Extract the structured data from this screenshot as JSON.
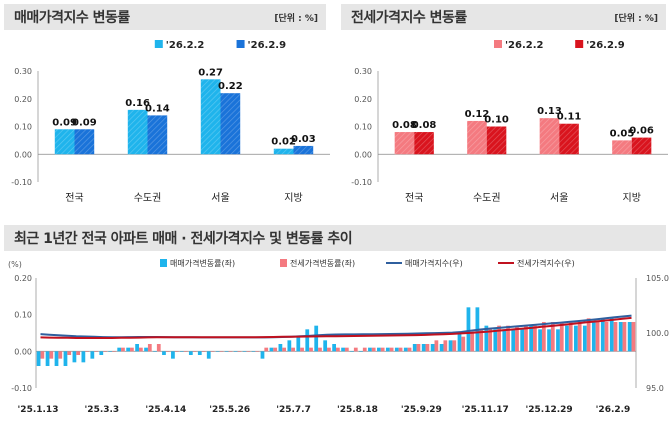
{
  "charts": [
    {
      "title": "매매가격지수 변동률",
      "unit": "[단위 : %]",
      "legend": [
        "'26.2.2",
        "'26.2.9"
      ],
      "colors": [
        "#1fb4ec",
        "#1a73d9"
      ],
      "categories": [
        "전국",
        "수도권",
        "서울",
        "지방"
      ],
      "series": [
        [
          0.09,
          0.16,
          0.27,
          0.02
        ],
        [
          0.09,
          0.14,
          0.22,
          0.03
        ]
      ],
      "labels": [
        [
          "0.09",
          "0.16",
          "0.27",
          "0.02"
        ],
        [
          "0.09",
          "0.14",
          "0.22",
          "0.03"
        ]
      ],
      "yticks": [
        "0.30",
        "0.20",
        "0.10",
        "0.00",
        "-0.10"
      ]
    },
    {
      "title": "전세가격지수 변동률",
      "unit": "[단위 : %]",
      "legend": [
        "'26.2.2",
        "'26.2.9"
      ],
      "colors": [
        "#f47a80",
        "#d9141e"
      ],
      "categories": [
        "전국",
        "수도권",
        "서울",
        "지방"
      ],
      "series": [
        [
          0.08,
          0.12,
          0.13,
          0.05
        ],
        [
          0.08,
          0.1,
          0.11,
          0.06
        ]
      ],
      "labels": [
        [
          "0.08",
          "0.12",
          "0.13",
          "0.05"
        ],
        [
          "0.08",
          "0.10",
          "0.11",
          "0.06"
        ]
      ],
      "yticks": [
        "0.30",
        "0.20",
        "0.10",
        "0.00",
        "-0.10"
      ]
    }
  ],
  "trend": {
    "title": "최근 1년간 전국 아파트 매매 · 전세가격지수 및 변동률 추이",
    "left_unit": "(%)",
    "left_ticks": [
      "0.20",
      "0.10",
      "0.00",
      "-0.10"
    ],
    "right_ticks": [
      "105.0",
      "100.0",
      "95.0"
    ],
    "x_labels": [
      "'25.1.13",
      "'25.3.3",
      "'25.4.14",
      "'25.5.26",
      "'25.7.7",
      "'25.8.18",
      "'25.9.29",
      "'25.11.17",
      "'25.12.29",
      "'26.2.9"
    ],
    "legend": [
      "매매가격변동률(좌)",
      "전세가격변동률(좌)",
      "매매가격지수(우)",
      "전세가격지수(우)"
    ],
    "colors": {
      "sale_bar": "#1fb4ec",
      "lease_bar": "#f47a80",
      "sale_line": "#2f5f9e",
      "lease_line": "#c0111f"
    },
    "sale_change": [
      -0.04,
      -0.04,
      -0.04,
      -0.04,
      -0.03,
      -0.03,
      -0.02,
      -0.01,
      0.0,
      0.01,
      0.01,
      0.02,
      0.01,
      0.0,
      -0.01,
      -0.02,
      0.0,
      -0.01,
      -0.01,
      -0.02,
      0.0,
      0.0,
      0.0,
      0.0,
      0.0,
      -0.02,
      0.01,
      0.02,
      0.03,
      0.04,
      0.06,
      0.07,
      0.03,
      0.02,
      0.01,
      0.0,
      0.0,
      0.01,
      0.01,
      0.01,
      0.01,
      0.01,
      0.02,
      0.02,
      0.02,
      0.02,
      0.03,
      0.05,
      0.12,
      0.12,
      0.07,
      0.06,
      0.06,
      0.06,
      0.06,
      0.07,
      0.06,
      0.06,
      0.06,
      0.07,
      0.07,
      0.07,
      0.08,
      0.09,
      0.09,
      0.08,
      0.08
    ],
    "lease_change": [
      -0.02,
      -0.02,
      -0.02,
      -0.01,
      -0.01,
      0.0,
      0.0,
      0.0,
      0.0,
      0.01,
      0.01,
      0.01,
      0.02,
      0.02,
      0.0,
      0.0,
      0.0,
      0.0,
      0.0,
      0.0,
      0.0,
      0.0,
      0.0,
      0.0,
      0.0,
      0.01,
      0.01,
      0.01,
      0.01,
      0.01,
      0.01,
      0.01,
      0.01,
      0.01,
      0.01,
      0.01,
      0.01,
      0.01,
      0.01,
      0.01,
      0.01,
      0.01,
      0.02,
      0.02,
      0.03,
      0.03,
      0.03,
      0.04,
      0.05,
      0.06,
      0.06,
      0.07,
      0.07,
      0.07,
      0.07,
      0.07,
      0.08,
      0.08,
      0.08,
      0.08,
      0.08,
      0.09,
      0.08,
      0.08,
      0.08,
      0.08,
      0.08
    ],
    "sale_index": [
      99.9,
      99.85,
      99.8,
      99.75,
      99.7,
      99.68,
      99.65,
      99.63,
      99.62,
      99.62,
      99.63,
      99.64,
      99.64,
      99.64,
      99.63,
      99.62,
      99.62,
      99.61,
      99.6,
      99.6,
      99.6,
      99.6,
      99.6,
      99.6,
      99.6,
      99.6,
      99.62,
      99.64,
      99.66,
      99.7,
      99.74,
      99.8,
      99.84,
      99.86,
      99.87,
      99.87,
      99.88,
      99.89,
      99.9,
      99.91,
      99.92,
      99.93,
      99.95,
      99.97,
      99.99,
      100.01,
      100.04,
      100.09,
      100.2,
      100.31,
      100.38,
      100.45,
      100.52,
      100.59,
      100.66,
      100.73,
      100.8,
      100.87,
      100.94,
      101.01,
      101.08,
      101.16,
      101.24,
      101.33,
      101.42,
      101.5,
      101.58
    ],
    "lease_index": [
      99.6,
      99.58,
      99.57,
      99.56,
      99.55,
      99.55,
      99.55,
      99.55,
      99.55,
      99.56,
      99.57,
      99.58,
      99.6,
      99.62,
      99.62,
      99.62,
      99.62,
      99.62,
      99.62,
      99.62,
      99.62,
      99.62,
      99.62,
      99.62,
      99.62,
      99.63,
      99.64,
      99.65,
      99.66,
      99.67,
      99.68,
      99.69,
      99.7,
      99.71,
      99.72,
      99.73,
      99.74,
      99.75,
      99.76,
      99.77,
      99.78,
      99.79,
      99.81,
      99.83,
      99.86,
      99.89,
      99.92,
      99.96,
      100.01,
      100.07,
      100.13,
      100.2,
      100.27,
      100.34,
      100.41,
      100.48,
      100.56,
      100.64,
      100.72,
      100.8,
      100.88,
      100.97,
      101.05,
      101.13,
      101.21,
      101.29,
      101.37
    ]
  },
  "chart_data": [
    {
      "type": "bar",
      "title": "매매가격지수 변동률",
      "categories": [
        "전국",
        "수도권",
        "서울",
        "지방"
      ],
      "series": [
        {
          "name": "'26.2.2",
          "values": [
            0.09,
            0.16,
            0.27,
            0.02
          ]
        },
        {
          "name": "'26.2.9",
          "values": [
            0.09,
            0.14,
            0.22,
            0.03
          ]
        }
      ],
      "ylabel": "%",
      "ylim": [
        -0.1,
        0.3
      ]
    },
    {
      "type": "bar",
      "title": "전세가격지수 변동률",
      "categories": [
        "전국",
        "수도권",
        "서울",
        "지방"
      ],
      "series": [
        {
          "name": "'26.2.2",
          "values": [
            0.08,
            0.12,
            0.13,
            0.05
          ]
        },
        {
          "name": "'26.2.9",
          "values": [
            0.08,
            0.1,
            0.11,
            0.06
          ]
        }
      ],
      "ylabel": "%",
      "ylim": [
        -0.1,
        0.3
      ]
    },
    {
      "type": "bar",
      "title": "최근 1년간 전국 아파트 매매 · 전세가격지수 및 변동률 추이",
      "x": [
        "'25.1.13",
        "'26.2.9"
      ],
      "series": [
        {
          "name": "매매가격변동률(좌)",
          "axis": "left"
        },
        {
          "name": "전세가격변동률(좌)",
          "axis": "left"
        },
        {
          "name": "매매가격지수(우)",
          "type": "line",
          "axis": "right"
        },
        {
          "name": "전세가격지수(우)",
          "type": "line",
          "axis": "right"
        }
      ],
      "ylim": [
        -0.1,
        0.2
      ],
      "y2lim": [
        95.0,
        105.0
      ]
    }
  ]
}
